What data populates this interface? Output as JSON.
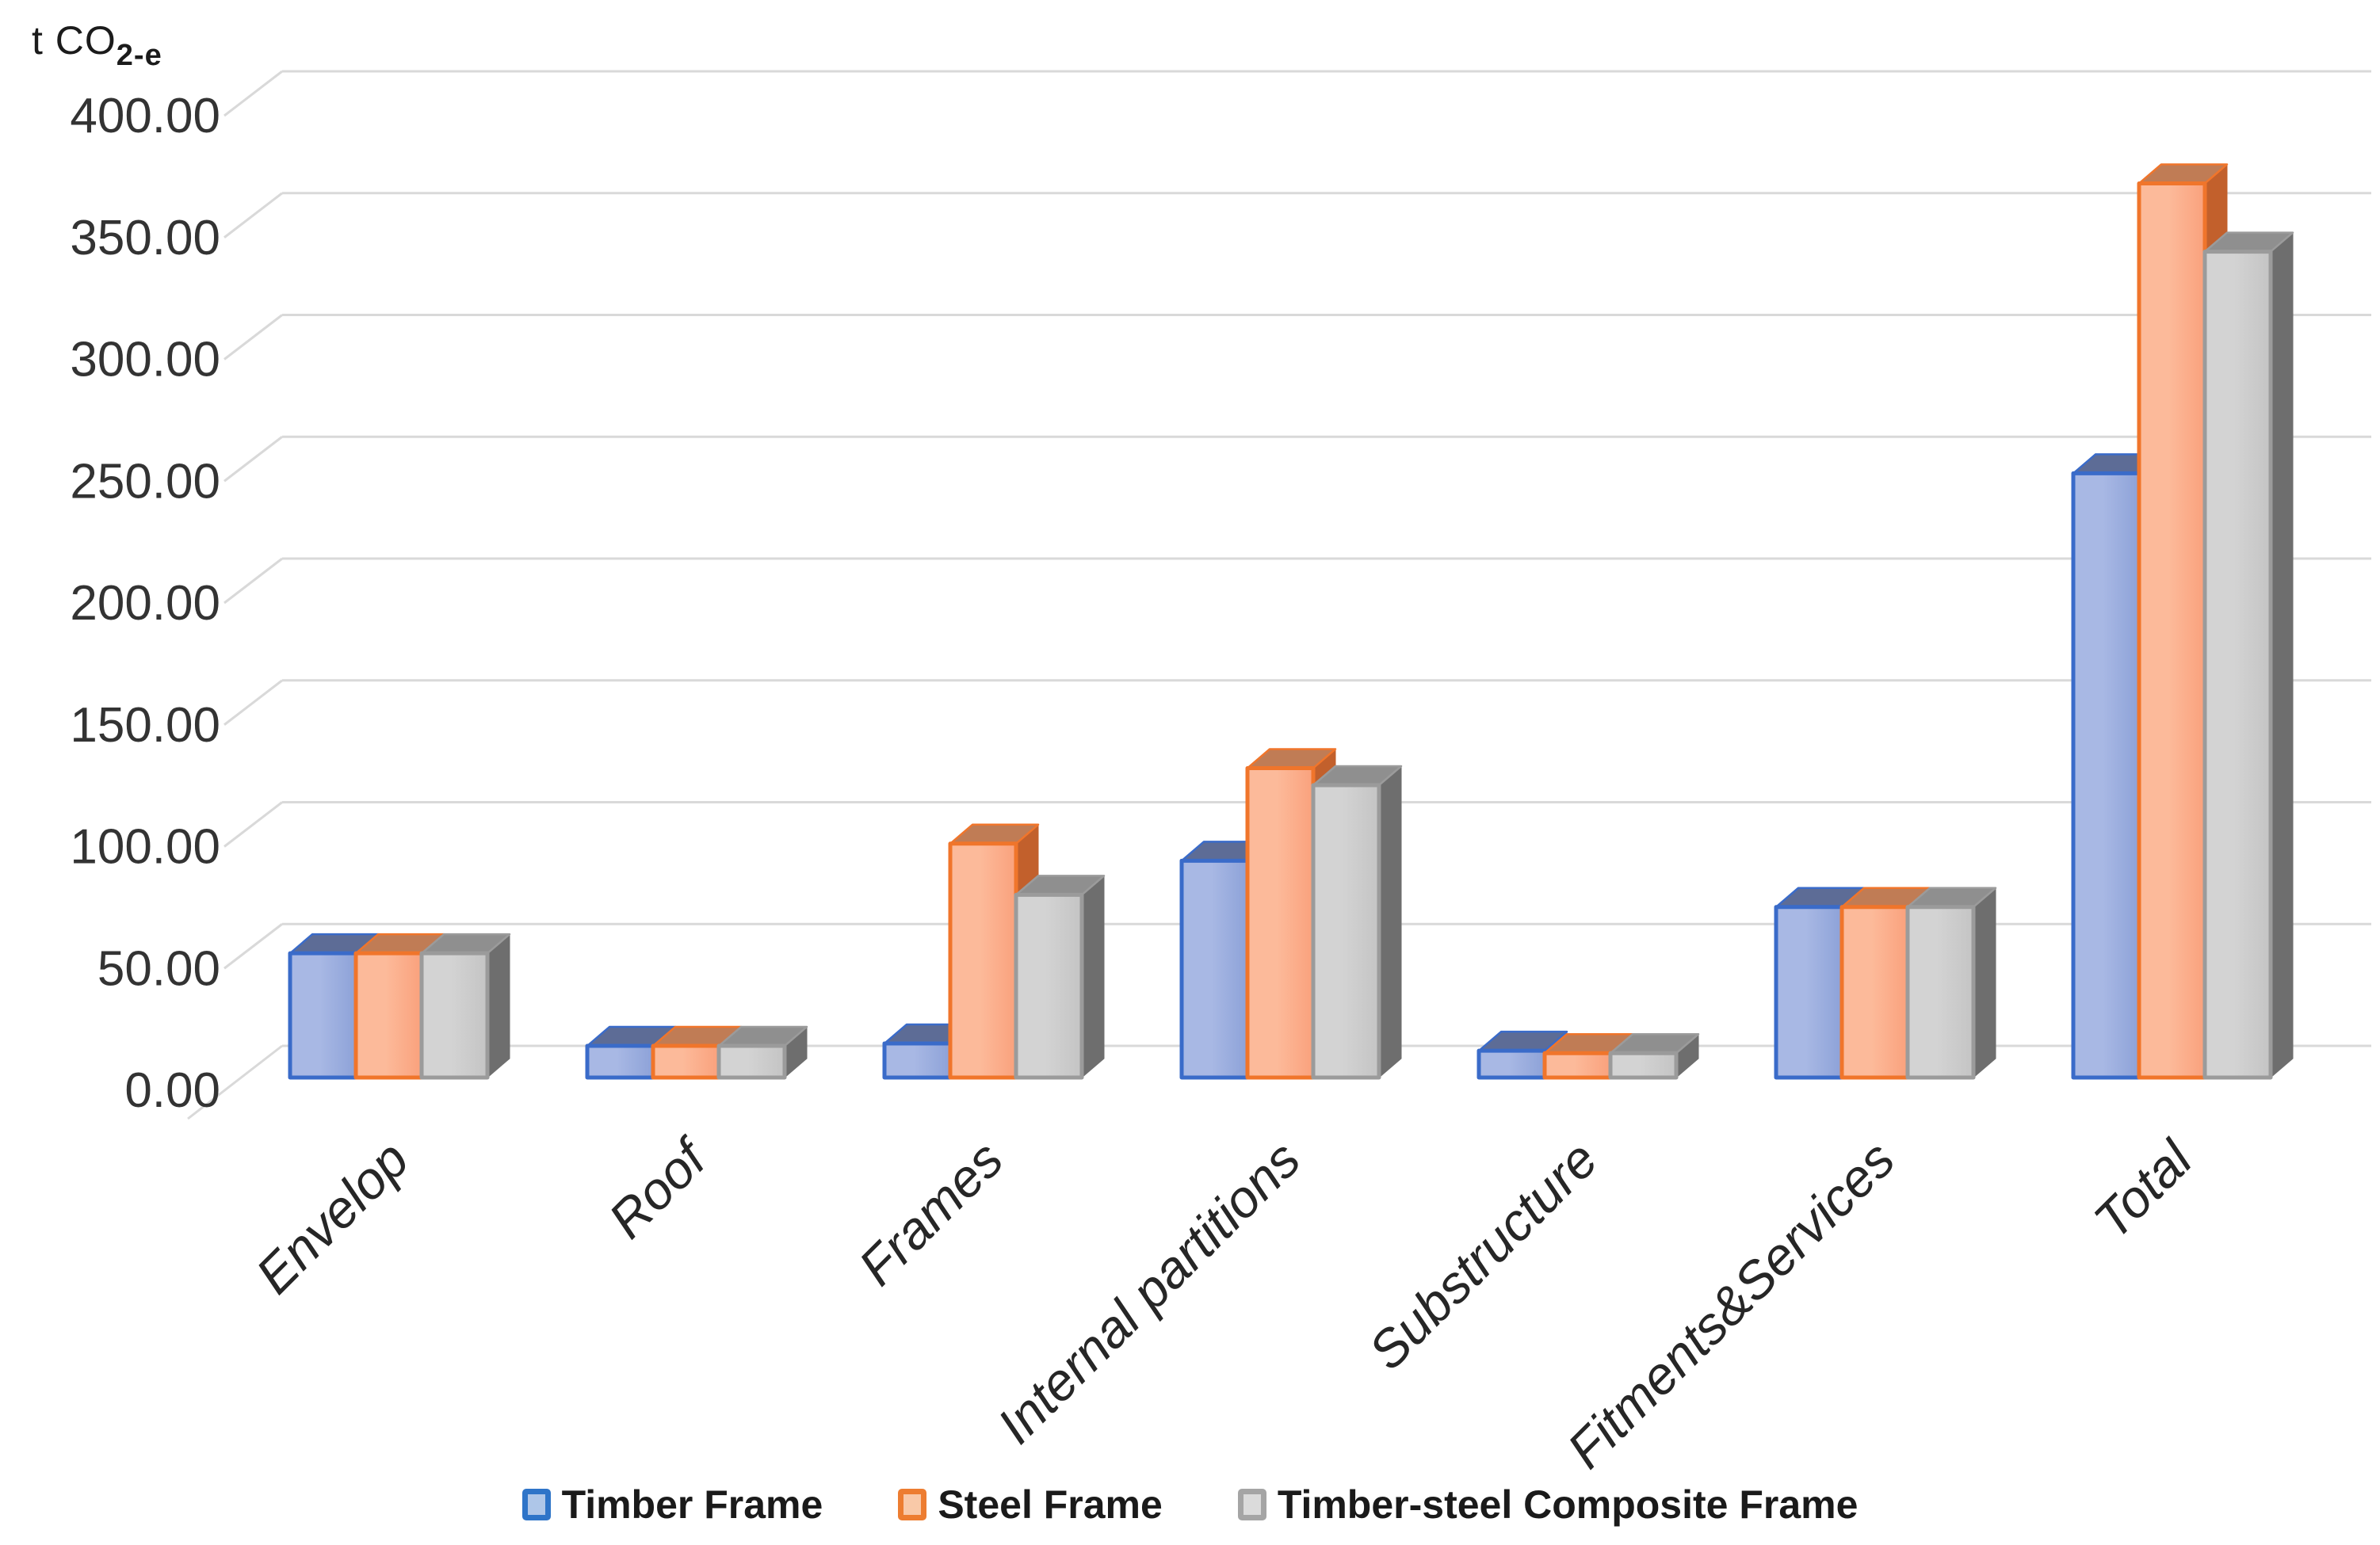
{
  "chart_data": {
    "type": "bar",
    "variant": "3d-clustered-column",
    "title": "",
    "unit_label": {
      "prefix": "t CO",
      "subscript": "2-e"
    },
    "categories": [
      "Envelop",
      "Roof",
      "Frames",
      "Internal partitions",
      "Substructure",
      "Fitments&Services",
      "Total"
    ],
    "series": [
      {
        "name": "Timber Frame",
        "color": "#4472C4",
        "values": [
          51,
          13,
          14,
          89,
          11,
          70,
          248
        ]
      },
      {
        "name": "Steel Frame",
        "color": "#ED7D31",
        "values": [
          51,
          13,
          96,
          127,
          10,
          70,
          367
        ]
      },
      {
        "name": "Timber-steel Composite Frame",
        "color": "#A5A5A5",
        "values": [
          51,
          13,
          75,
          120,
          10,
          70,
          339
        ]
      }
    ],
    "y_axis": {
      "min": 0,
      "max": 400,
      "step": 50,
      "tick_labels": [
        "0.00",
        "50.00",
        "100.00",
        "150.00",
        "200.00",
        "250.00",
        "300.00",
        "350.00",
        "400.00"
      ]
    },
    "legend_position": "bottom",
    "grid": true
  },
  "palette": {
    "background": "#FFFFFF",
    "gridline": "#D9D9D9",
    "axis_text": "#333333",
    "category_text": "#262626",
    "legend_text": "#1A1A1A",
    "series_faces": [
      {
        "border": "#3A6BC9",
        "front_light": "#A8B8E4",
        "front_dark": "#8DA2D8",
        "top": "#5D6C96",
        "side": "#4E66A8",
        "legend_border": "#2E74C8",
        "legend_fill": "#AEC6E8"
      },
      {
        "border": "#F0752B",
        "front_light": "#FCBA9A",
        "front_dark": "#FAA17C",
        "top": "#C07C55",
        "side": "#C2602C",
        "legend_border": "#ED7D31",
        "legend_fill": "#F9C9A8"
      },
      {
        "border": "#9B9B9B",
        "front_light": "#D3D3D3",
        "front_dark": "#C4C4C4",
        "top": "#8F8F8F",
        "side": "#6E6E6E",
        "legend_border": "#A5A5A5",
        "legend_fill": "#DBDBDB"
      }
    ]
  }
}
